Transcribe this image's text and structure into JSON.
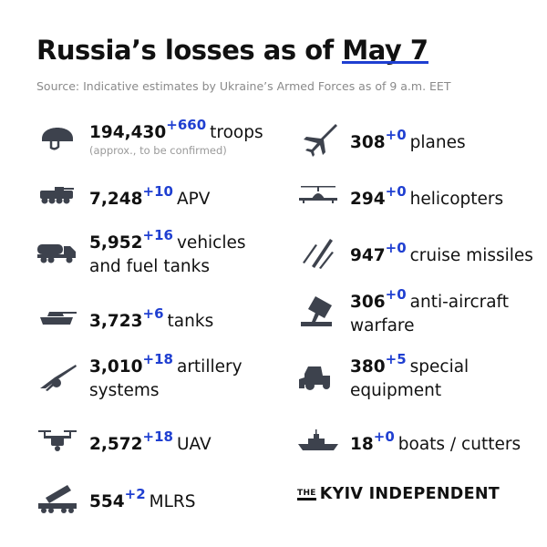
{
  "title": {
    "prefix": "Russia’s losses as of",
    "date": "May 7"
  },
  "source": "Source: Indicative estimates by Ukraine’s Armed Forces as of 9 a.m. EET",
  "accent_color": "#1f3fd1",
  "left_items": [
    {
      "icon": "helmet-icon",
      "value": "194,430",
      "delta": "+660",
      "label": "troops",
      "note": "(approx., to be confirmed)"
    },
    {
      "icon": "apv-icon",
      "value": "7,248",
      "delta": "+10",
      "label": "APV"
    },
    {
      "icon": "fuel-truck-icon",
      "value": "5,952",
      "delta": "+16",
      "label": "vehicles",
      "label2": "and fuel tanks"
    },
    {
      "icon": "tank-icon",
      "value": "3,723",
      "delta": "+6",
      "label": "tanks"
    },
    {
      "icon": "artillery-icon",
      "value": "3,010",
      "delta": "+18",
      "label": "artillery",
      "label2": "systems"
    },
    {
      "icon": "drone-icon",
      "value": "2,572",
      "delta": "+18",
      "label": "UAV"
    },
    {
      "icon": "mlrs-icon",
      "value": "554",
      "delta": "+2",
      "label": "MLRS"
    }
  ],
  "right_items": [
    {
      "icon": "plane-icon",
      "value": "308",
      "delta": "+0",
      "label": "planes"
    },
    {
      "icon": "helicopter-icon",
      "value": "294",
      "delta": "+0",
      "label": "helicopters"
    },
    {
      "icon": "missiles-icon",
      "value": "947",
      "delta": "+0",
      "label": "cruise missiles"
    },
    {
      "icon": "anti-aircraft-icon",
      "value": "306",
      "delta": "+0",
      "label": "anti-aircraft",
      "label2": "warfare"
    },
    {
      "icon": "special-equipment-icon",
      "value": "380",
      "delta": "+5",
      "label": "special",
      "label2": "equipment"
    },
    {
      "icon": "boat-icon",
      "value": "18",
      "delta": "+0",
      "label": "boats / cutters"
    }
  ],
  "logo": {
    "the": "THE",
    "name": "KYIV INDEPENDENT"
  }
}
